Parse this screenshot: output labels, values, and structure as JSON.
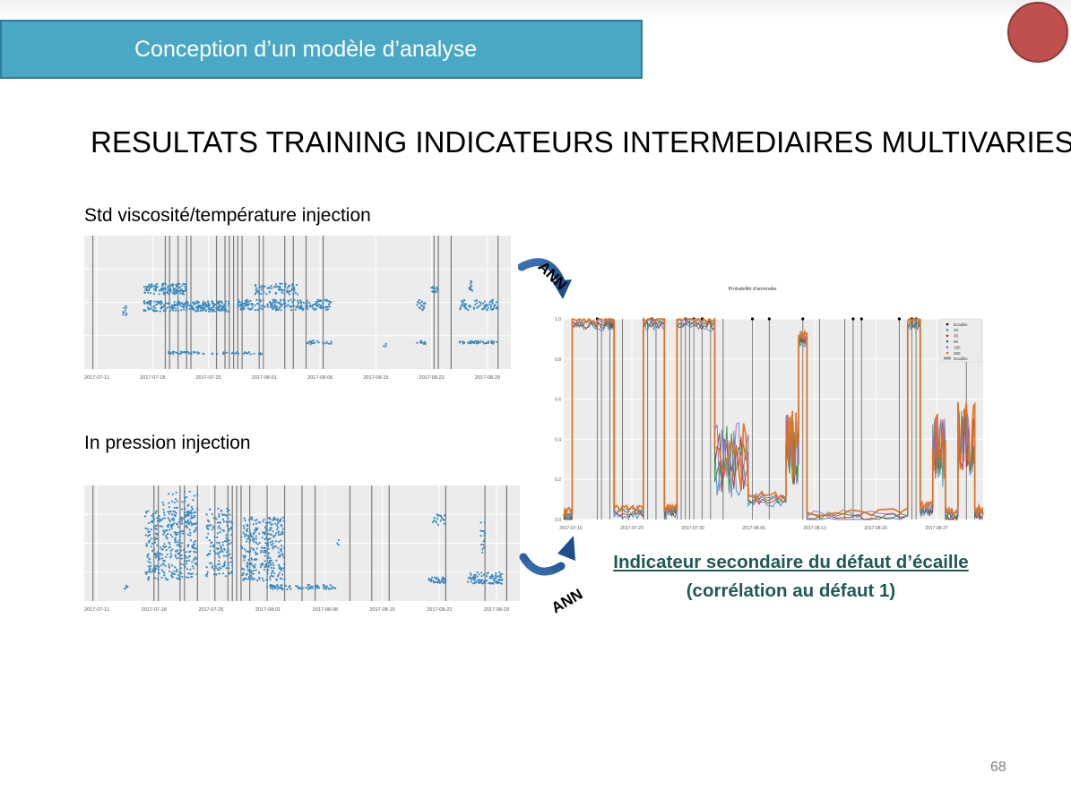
{
  "banner": {
    "title": "Conception d’un modèle d’analyse"
  },
  "main_title": "RESULTATS TRAINING INDICATEURS INTERMEDIAIRES MULTIVARIES",
  "sections": {
    "top_label": "Std viscosité/température injection",
    "bottom_label": "In pression injection"
  },
  "arrows": {
    "top_label": "ANN",
    "bottom_label": "ANN"
  },
  "indicator": {
    "line1": "Indicateur secondaire du défaut d’écaille",
    "line2": "(corrélation au défaut 1)"
  },
  "page_number": "68",
  "colors": {
    "banner": "#4aa8c4",
    "circle": "#c0504d",
    "indicator_text": "#1f5a54",
    "series_blue": "#3b8bc2"
  },
  "chart_data": [
    {
      "type": "scatter",
      "title": "",
      "x_ticks": [
        "2017-07-11",
        "2017-07-18",
        "2017-07-25",
        "2017-08-01",
        "2017-08-08",
        "2017-08-15",
        "2017-08-22",
        "2017-08-29"
      ],
      "grid": true
    },
    {
      "type": "scatter",
      "title": "",
      "x_ticks": [
        "2017-07-11",
        "2017-07-18",
        "2017-07-25",
        "2017-08-01",
        "2017-08-08",
        "2017-08-15",
        "2017-08-22",
        "2017-08-29"
      ],
      "grid": true
    },
    {
      "type": "line",
      "title": "Probabilité d'anomalie",
      "x_ticks": [
        "2017-07-16",
        "2017-07-23",
        "2017-07-30",
        "2017-08-06",
        "2017-08-13",
        "2017-08-20",
        "2017-08-27"
      ],
      "y_ticks": [
        "0.0",
        "0.2",
        "0.4",
        "0.6",
        "0.8",
        "1.0"
      ],
      "ylim": [
        0,
        1
      ],
      "legend": [
        "Ecailles",
        "10",
        "30",
        "60",
        "180",
        "360",
        "Ecaillés"
      ],
      "legend_position": "top-right",
      "series_colors": [
        "#000000",
        "#3b8bc2",
        "#c0262d",
        "#2e8b3a",
        "#8e6bbf",
        "#e0701a"
      ],
      "grid": true
    }
  ]
}
